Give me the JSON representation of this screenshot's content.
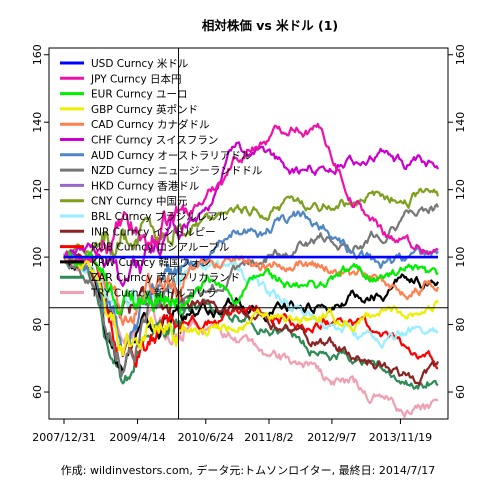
{
  "chart_data": {
    "type": "line",
    "title": "相対株価 vs 米ドル (1)",
    "caption": "作成: wildinvestors.com, データ元:トムソンロイター, 最終日: 2014/7/17",
    "x_ticks": [
      "2007/12/31",
      "2009/4/14",
      "2010/6/24",
      "2011/8/2",
      "2012/9/7",
      "2013/11/19"
    ],
    "y_ticks": [
      60,
      80,
      100,
      120,
      140,
      160
    ],
    "ylim": [
      52,
      162
    ],
    "x_range": [
      "2007/12/31",
      "2014/7/17"
    ],
    "reference_lines": {
      "horizontal_y": 85,
      "vertical_x": "2010/1/1"
    },
    "legend_position": "top-left",
    "series": [
      {
        "name": "USD Curncy 米ドル",
        "color": "#0000ff",
        "values": [
          100,
          100,
          100,
          100,
          100,
          100,
          100,
          100,
          100,
          100,
          100,
          100,
          100,
          100
        ]
      },
      {
        "name": "JPY Curncy 日本円",
        "color": "#ee11aa",
        "values": [
          100,
          98,
          108,
          104,
          112,
          118,
          130,
          135,
          140,
          137,
          118,
          108,
          104,
          102
        ]
      },
      {
        "name": "EUR Curncy ユーロ",
        "color": "#00ee00",
        "values": [
          100,
          98,
          86,
          90,
          85,
          92,
          88,
          95,
          90,
          92,
          96,
          94,
          95,
          92
        ]
      },
      {
        "name": "GBP Curncy 英ポンド",
        "color": "#eeee00",
        "values": [
          100,
          96,
          75,
          80,
          78,
          80,
          80,
          82,
          80,
          82,
          80,
          84,
          84,
          86
        ]
      },
      {
        "name": "CAD Curncy カナダドル",
        "color": "#ff7f50",
        "values": [
          100,
          98,
          82,
          90,
          95,
          98,
          100,
          98,
          100,
          98,
          95,
          92,
          90,
          93
        ]
      },
      {
        "name": "CHF Curncy スイスフラン",
        "color": "#cc00cc",
        "values": [
          100,
          102,
          95,
          100,
          108,
          115,
          135,
          128,
          125,
          127,
          128,
          130,
          127,
          126
        ]
      },
      {
        "name": "AUD Curncy オーストラリアドル",
        "color": "#4f86c6",
        "values": [
          100,
          96,
          70,
          90,
          95,
          102,
          110,
          108,
          112,
          110,
          100,
          98,
          100,
          102
        ]
      },
      {
        "name": "NZD Curncy ニュージーランドドル",
        "color": "#777777",
        "values": [
          100,
          94,
          72,
          85,
          88,
          90,
          96,
          100,
          104,
          106,
          104,
          108,
          112,
          115
        ]
      },
      {
        "name": "HKD Curncy 香港ドル",
        "color": "#9966cc",
        "values": [
          100,
          100,
          100,
          100,
          100,
          100,
          100,
          100,
          100,
          100,
          100,
          100,
          100,
          100
        ]
      },
      {
        "name": "CNY Curncy 中国元",
        "color": "#7f9f1f",
        "values": [
          100,
          103,
          106,
          106,
          108,
          110,
          112,
          114,
          115,
          116,
          117,
          118,
          118,
          118
        ]
      },
      {
        "name": "BRL Curncy ブラジルレアル",
        "color": "#99eeff",
        "values": [
          100,
          98,
          78,
          88,
          95,
          98,
          96,
          90,
          85,
          80,
          78,
          76,
          78,
          80
        ]
      },
      {
        "name": "INR Curncy インドルピー",
        "color": "#8b2323",
        "values": [
          100,
          95,
          82,
          85,
          86,
          86,
          84,
          80,
          76,
          74,
          72,
          68,
          64,
          66
        ]
      },
      {
        "name": "RUB Curncy ロシアルーブル",
        "color": "#ff0000",
        "values": [
          100,
          98,
          72,
          78,
          80,
          82,
          84,
          82,
          80,
          82,
          80,
          76,
          72,
          70
        ]
      },
      {
        "name": "KRW Curncy 韓国ウォン",
        "color": "#000000",
        "values": [
          100,
          94,
          66,
          78,
          82,
          84,
          86,
          84,
          85,
          86,
          88,
          90,
          92,
          92
        ]
      },
      {
        "name": "ZAR Curncy 南アフリカランド",
        "color": "#2e8b57",
        "values": [
          100,
          92,
          62,
          78,
          82,
          86,
          82,
          80,
          76,
          72,
          70,
          68,
          64,
          64
        ]
      },
      {
        "name": "TRY Curncy 新トルコリラ",
        "color": "#f0a0b0",
        "values": [
          100,
          94,
          75,
          80,
          78,
          80,
          76,
          72,
          68,
          64,
          62,
          58,
          54,
          55
        ]
      }
    ]
  }
}
